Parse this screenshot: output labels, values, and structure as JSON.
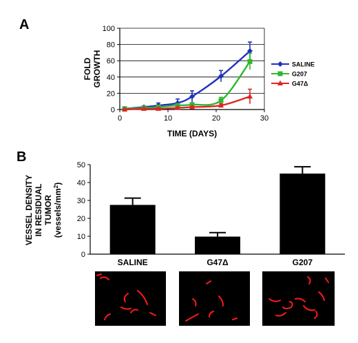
{
  "panels": [
    {
      "letter": "A"
    },
    {
      "letter": "B"
    }
  ],
  "chart_data": [
    {
      "type": "line",
      "panel": "A",
      "xlabel": "TIME (DAYS)",
      "ylabel_lines": [
        "FOLD",
        "GROWTH"
      ],
      "xlim": [
        0,
        30
      ],
      "ylim": [
        0,
        100
      ],
      "xticks": [
        0,
        10,
        20,
        30
      ],
      "yticks": [
        0,
        20,
        40,
        60,
        80,
        100
      ],
      "grid_y": true,
      "legend_position": "right",
      "series": [
        {
          "name": "SALINE",
          "color": "#1f2fbf",
          "marker": "diamond",
          "x": [
            1,
            5,
            8,
            12,
            15,
            21,
            27
          ],
          "y": [
            1,
            3,
            5,
            8,
            16,
            41,
            72
          ],
          "err": [
            1,
            1,
            3,
            5,
            7,
            7,
            11
          ]
        },
        {
          "name": "G207",
          "color": "#2db82d",
          "marker": "square",
          "x": [
            1,
            5,
            8,
            12,
            15,
            21,
            27
          ],
          "y": [
            1,
            2,
            3,
            5,
            6,
            11,
            59
          ],
          "err": [
            1,
            1,
            1,
            2,
            2,
            4,
            10
          ]
        },
        {
          "name": "G47Δ",
          "color": "#e02424",
          "marker": "triangle",
          "x": [
            1,
            5,
            8,
            12,
            15,
            21,
            27
          ],
          "y": [
            0,
            1,
            1,
            2,
            3,
            5,
            16
          ],
          "err": [
            0.5,
            0.5,
            1,
            1,
            1,
            2,
            9
          ]
        }
      ]
    },
    {
      "type": "bar",
      "panel": "B",
      "ylabel_lines": [
        "VESSEL DENSITY",
        "IN RESIDUAL",
        "TUMOR",
        "(vessels/mm",
        "2",
        ")"
      ],
      "ylim": [
        0,
        50
      ],
      "yticks": [
        0,
        10,
        20,
        30,
        40,
        50
      ],
      "categories": [
        "SALINE",
        "G47Δ",
        "G207"
      ],
      "values": [
        27.5,
        9.8,
        45
      ],
      "err": [
        3.8,
        2.2,
        3.8
      ],
      "bar_color": "#000000",
      "micrographs": [
        {
          "group": "SALINE"
        },
        {
          "group": "G47Δ"
        },
        {
          "group": "G207"
        }
      ]
    }
  ]
}
